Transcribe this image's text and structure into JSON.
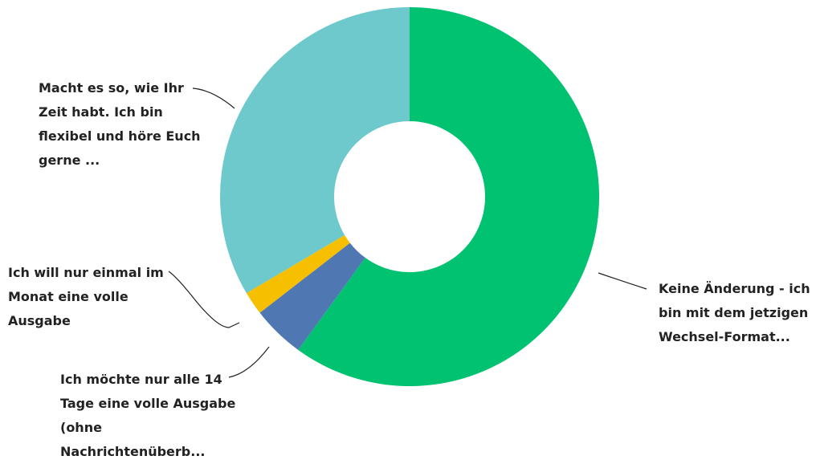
{
  "chart_data": {
    "type": "donut",
    "categories": [
      "Keine Änderung - ich bin mit dem jetzigen Wechsel-Format...",
      "Ich möchte nur alle 14 Tage eine volle Ausgabe (ohne Nachrichtenüberb...",
      "Ich will nur einmal im Monat eine volle Ausgabe",
      "Macht es so, wie Ihr Zeit habt. Ich bin flexibel und höre Euch gerne ..."
    ],
    "values": [
      60,
      4.5,
      2,
      33.5
    ],
    "colors": [
      "#00c270",
      "#4f78b3",
      "#f6bf00",
      "#6dc9cc"
    ]
  }
}
